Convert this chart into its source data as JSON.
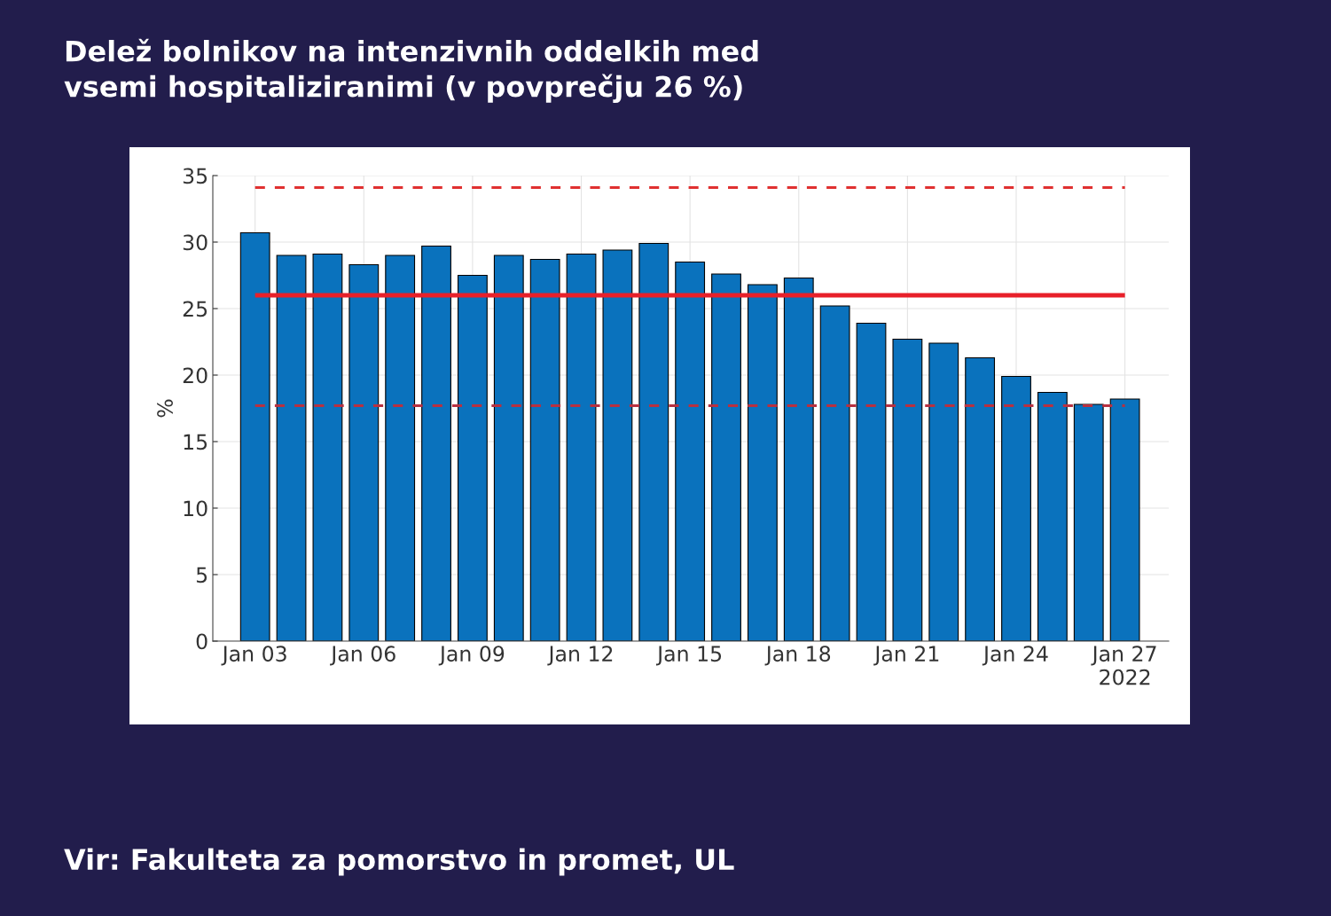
{
  "chart_data": {
    "type": "bar",
    "title": "Delež bolnikov na intenzivnih oddelkih med\nvsemi hospitaliziranimi (v povprečju 26 %)",
    "ylabel": "%",
    "x": [
      "2022-01-03",
      "2022-01-04",
      "2022-01-05",
      "2022-01-06",
      "2022-01-07",
      "2022-01-08",
      "2022-01-09",
      "2022-01-10",
      "2022-01-11",
      "2022-01-12",
      "2022-01-13",
      "2022-01-14",
      "2022-01-15",
      "2022-01-16",
      "2022-01-17",
      "2022-01-18",
      "2022-01-19",
      "2022-01-20",
      "2022-01-21",
      "2022-01-22",
      "2022-01-23",
      "2022-01-24",
      "2022-01-25",
      "2022-01-26",
      "2022-01-27"
    ],
    "values": [
      30.7,
      29.0,
      29.1,
      28.3,
      29.0,
      29.7,
      27.5,
      29.0,
      28.7,
      29.1,
      29.4,
      29.9,
      28.5,
      27.6,
      26.8,
      27.3,
      25.2,
      23.9,
      22.7,
      22.4,
      21.3,
      19.9,
      18.7,
      17.8,
      18.2
    ],
    "color": "#0a72bd",
    "xlim": [
      "2022-01-01T20:00",
      "2022-01-28T05:00"
    ],
    "xticks": [
      {
        "value": "2022-01-03",
        "label": "Jan 03"
      },
      {
        "value": "2022-01-06",
        "label": "Jan 06"
      },
      {
        "value": "2022-01-09",
        "label": "Jan 09"
      },
      {
        "value": "2022-01-12",
        "label": "Jan 12"
      },
      {
        "value": "2022-01-15",
        "label": "Jan 15"
      },
      {
        "value": "2022-01-18",
        "label": "Jan 18"
      },
      {
        "value": "2022-01-21",
        "label": "Jan 21"
      },
      {
        "value": "2022-01-24",
        "label": "Jan 24"
      },
      {
        "value": "2022-01-27",
        "label": "Jan 27\n2022"
      }
    ],
    "ylim": [
      0,
      35
    ],
    "yticks": [
      0,
      5,
      10,
      15,
      20,
      25,
      30,
      35
    ],
    "grid": true,
    "ref_lines": [
      {
        "axis": "y",
        "value": 34.1,
        "color": "#e03030",
        "line_style": "dashed"
      },
      {
        "axis": "y",
        "value": 26,
        "color": "#e8202a",
        "line_style": "solid"
      },
      {
        "axis": "y",
        "value": 17.7,
        "color": "#b83040",
        "line_style": "dashed"
      }
    ],
    "annotations": [
      "Vir: Fakulteta za pomorstvo in promet, UL"
    ]
  }
}
